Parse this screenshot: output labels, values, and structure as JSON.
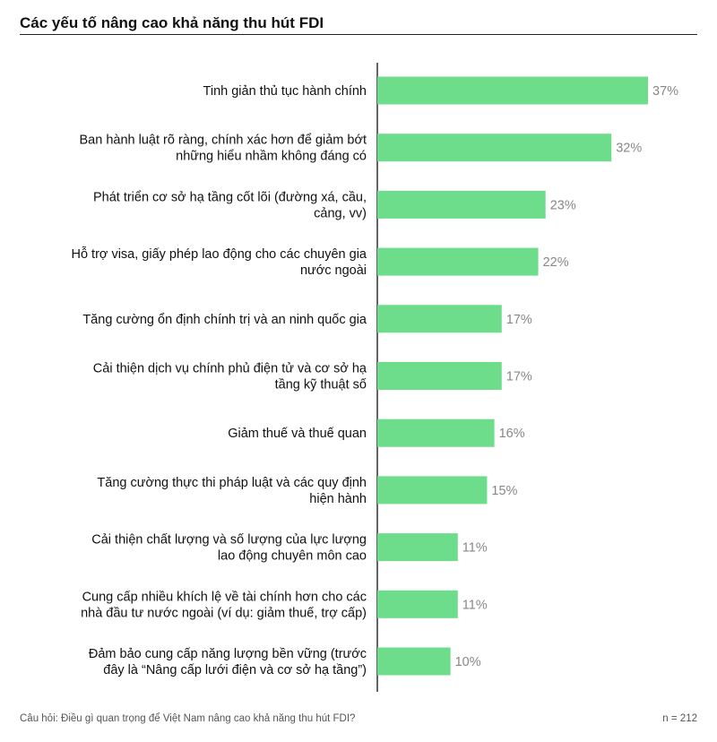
{
  "header": {
    "title": "Các yếu tố nâng cao khả năng thu hút FDI"
  },
  "chart_data": {
    "type": "bar",
    "orientation": "horizontal",
    "categories": [
      [
        "Tinh giản thủ tục hành chính"
      ],
      [
        "Ban hành luật rõ ràng, chính xác hơn để giảm bớt",
        "những hiểu nhầm không đáng có"
      ],
      [
        "Phát triển cơ sở hạ tầng cốt lõi (đường xá, cầu,",
        "cảng, vv)"
      ],
      [
        "Hỗ trợ visa, giấy phép lao động cho các chuyên gia",
        "nước ngoài"
      ],
      [
        "Tăng cường ổn định chính trị và an ninh quốc gia"
      ],
      [
        "Cải thiện dịch vụ chính phủ điện tử và cơ sở hạ",
        "tầng kỹ thuật số"
      ],
      [
        "Giảm thuế và thuế quan"
      ],
      [
        "Tăng cường thực thi pháp luật và các quy định",
        "hiện hành"
      ],
      [
        "Cải thiện chất lượng và số lượng của lực lượng",
        "lao động chuyên môn cao"
      ],
      [
        "Cung cấp nhiều khích lệ về tài chính hơn cho các",
        "nhà đầu tư nước ngoài (ví dụ: giảm thuế, trợ cấp)"
      ],
      [
        "Đảm bảo cung cấp năng lượng bền vững (trước",
        "đây là “Nâng cấp lưới điện và cơ sở hạ tầng”)"
      ]
    ],
    "values": [
      37,
      32,
      23,
      22,
      17,
      17,
      16,
      15,
      11,
      11,
      10
    ],
    "value_labels": [
      "37%",
      "32%",
      "23%",
      "22%",
      "17%",
      "17%",
      "16%",
      "15%",
      "11%",
      "11%",
      "10%"
    ],
    "unit": "%",
    "xlim": [
      0,
      37
    ],
    "bar_color": "#6ddc8b",
    "axis_color": "#222222",
    "grid": false,
    "legend": "none"
  },
  "footer": {
    "question": "Câu hỏi: Điều gì quan trọng để Việt Nam nâng cao khả năng thu hút FDI?",
    "sample": "n = 212"
  }
}
